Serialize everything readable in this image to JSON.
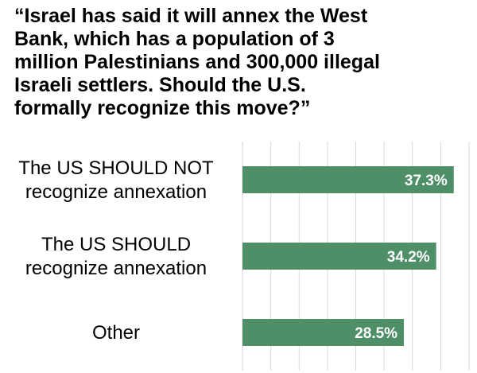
{
  "title_lines": [
    "“Israel has said it will annex the West",
    "Bank, which has a population of 3",
    "million Palestinians and 300,000 illegal",
    "Israeli settlers. Should the U.S.",
    "formally recognize this move?”"
  ],
  "chart_data": {
    "type": "bar",
    "orientation": "horizontal",
    "title": "“Israel has said it will annex the West Bank, which has a population of 3 million Palestinians and 300,000 illegal Israeli settlers. Should the U.S. formally recognize this move?”",
    "categories": [
      [
        "The US SHOULD NOT",
        "recognize annexation"
      ],
      [
        "The US SHOULD",
        "recognize annexation"
      ],
      [
        "Other"
      ]
    ],
    "values": [
      37.3,
      34.2,
      28.5
    ],
    "value_labels": [
      "37.3%",
      "34.2%",
      "28.5%"
    ],
    "xlim": [
      0,
      40
    ],
    "grid": "vertical",
    "xlabel": "",
    "ylabel": "",
    "bar_color": "#4e8f67",
    "grid_color": "#d9d9d9"
  }
}
